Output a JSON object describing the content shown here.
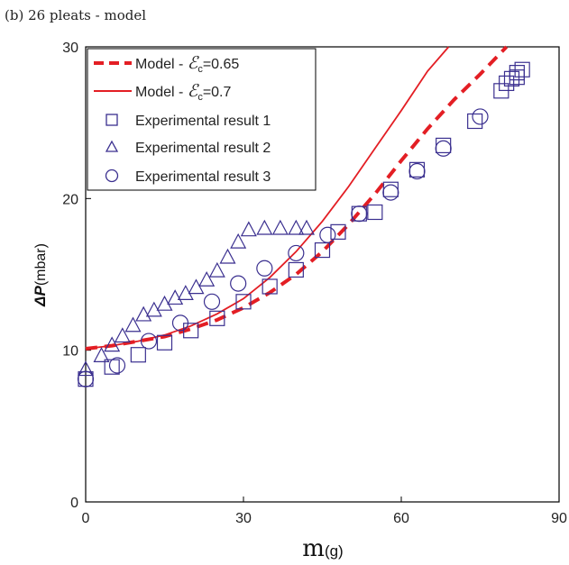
{
  "chart_data": {
    "type": "scatter",
    "title": "(b) 26 pleats - model",
    "xlabel": {
      "main": "m",
      "unit": "(g)"
    },
    "ylabel": {
      "main": "ΔP",
      "unit": "(mbar)"
    },
    "xlim": [
      0,
      90
    ],
    "ylim": [
      0,
      30
    ],
    "xticks": [
      "0",
      "30",
      "60",
      "90"
    ],
    "yticks": [
      "0",
      "10",
      "20",
      "30"
    ],
    "grid": false,
    "legend_position": "top-left",
    "series": [
      {
        "name": "Model - εc=0.65",
        "legend_label": "Model - ",
        "legend_symbol": "ℰ",
        "legend_sub": "c",
        "legend_value": "=0.65",
        "kind": "line",
        "style": "dashed",
        "color": "#e31e24",
        "x": [
          0,
          5,
          10,
          15,
          20,
          25,
          30,
          35,
          40,
          45,
          50,
          55,
          60,
          65,
          70,
          75,
          80
        ],
        "y": [
          10.1,
          10.3,
          10.6,
          10.9,
          11.4,
          12.0,
          12.8,
          13.8,
          15.0,
          16.5,
          18.3,
          20.3,
          22.5,
          24.6,
          26.5,
          28.2,
          30.0
        ]
      },
      {
        "name": "Model - εc=0.7",
        "legend_label": "Model - ",
        "legend_symbol": "ℰ",
        "legend_sub": "c",
        "legend_value": "=0.7",
        "kind": "line",
        "style": "solid",
        "color": "#e31e24",
        "x": [
          0,
          5,
          10,
          15,
          20,
          25,
          30,
          35,
          40,
          45,
          50,
          55,
          60,
          65,
          69
        ],
        "y": [
          10.1,
          10.3,
          10.6,
          11.0,
          11.6,
          12.4,
          13.4,
          14.8,
          16.5,
          18.5,
          20.8,
          23.3,
          25.8,
          28.4,
          30.0
        ]
      },
      {
        "name": "Experimental result 1",
        "kind": "scatter",
        "marker": "square",
        "color": "#3a2f8f",
        "x": [
          0,
          5,
          10,
          15,
          20,
          25,
          30,
          35,
          40,
          45,
          48,
          52,
          55,
          58,
          63,
          68,
          74,
          79,
          80,
          81,
          82,
          82,
          83
        ],
        "y": [
          8.1,
          8.9,
          9.7,
          10.5,
          11.3,
          12.1,
          13.2,
          14.2,
          15.3,
          16.6,
          17.8,
          19.0,
          19.1,
          20.6,
          21.9,
          23.5,
          25.1,
          27.1,
          27.6,
          27.9,
          28.0,
          28.3,
          28.5
        ]
      },
      {
        "name": "Experimental result 2",
        "kind": "scatter",
        "marker": "triangle",
        "color": "#3a2f8f",
        "x": [
          0,
          3,
          5,
          7,
          9,
          11,
          13,
          15,
          17,
          19,
          21,
          23,
          25,
          27,
          29,
          31,
          34,
          37,
          40,
          42
        ],
        "y": [
          8.7,
          9.6,
          10.3,
          10.9,
          11.6,
          12.3,
          12.6,
          13.0,
          13.4,
          13.7,
          14.1,
          14.6,
          15.2,
          16.1,
          17.1,
          17.9,
          18.0,
          18.0,
          18.0,
          18.0
        ]
      },
      {
        "name": "Experimental result 3",
        "kind": "scatter",
        "marker": "circle",
        "color": "#3a2f8f",
        "x": [
          0,
          6,
          12,
          18,
          24,
          29,
          34,
          40,
          46,
          52,
          58,
          63,
          68,
          75
        ],
        "y": [
          8.1,
          9.0,
          10.6,
          11.8,
          13.2,
          14.4,
          15.4,
          16.4,
          17.6,
          19.0,
          20.4,
          21.8,
          23.3,
          25.4
        ]
      }
    ]
  }
}
